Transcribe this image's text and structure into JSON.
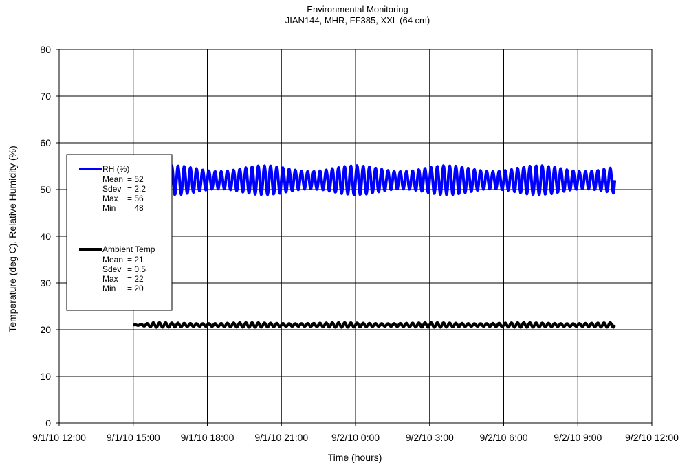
{
  "chart_data": {
    "type": "line",
    "title": "Environmental Monitoring",
    "subtitle": "JIAN144, MHR, FF385, XXL (64 cm)",
    "xlabel": "Time (hours)",
    "ylabel": "Temperature (deg C), Relative Humidity (%)",
    "ylim": [
      0,
      80
    ],
    "yticks": [
      "0",
      "10",
      "20",
      "30",
      "40",
      "50",
      "60",
      "70",
      "80"
    ],
    "x_range_hours": [
      0,
      24
    ],
    "xticks": [
      "9/1/10 12:00",
      "9/1/10 15:00",
      "9/1/10 18:00",
      "9/1/10 21:00",
      "9/2/10 0:00",
      "9/2/10 3:00",
      "9/2/10 6:00",
      "9/2/10 9:00",
      "9/2/10 12:00"
    ],
    "grid": true,
    "legend_placement": "left-middle",
    "series": [
      {
        "name": "RH (%)",
        "color": "#0000ff",
        "start_hour": 3.0,
        "end_hour": 22.5,
        "baseline": 52,
        "oscillation_period_hours": 0.25,
        "oscillation_amplitude": 2.5,
        "stats": [
          {
            "label": "Mean",
            "value": "= 52"
          },
          {
            "label": "Sdev",
            "value": "= 2.2"
          },
          {
            "label": "Max",
            "value": "= 56"
          },
          {
            "label": "Min",
            "value": "= 48"
          }
        ]
      },
      {
        "name": "Ambient Temp",
        "color": "#000000",
        "start_hour": 3.0,
        "end_hour": 22.5,
        "baseline": 21,
        "oscillation_period_hours": 0.25,
        "oscillation_amplitude": 0.4,
        "stats": [
          {
            "label": "Mean",
            "value": "= 21"
          },
          {
            "label": "Sdev",
            "value": "= 0.5"
          },
          {
            "label": "Max",
            "value": "= 22"
          },
          {
            "label": "Min",
            "value": "= 20"
          }
        ]
      }
    ]
  }
}
